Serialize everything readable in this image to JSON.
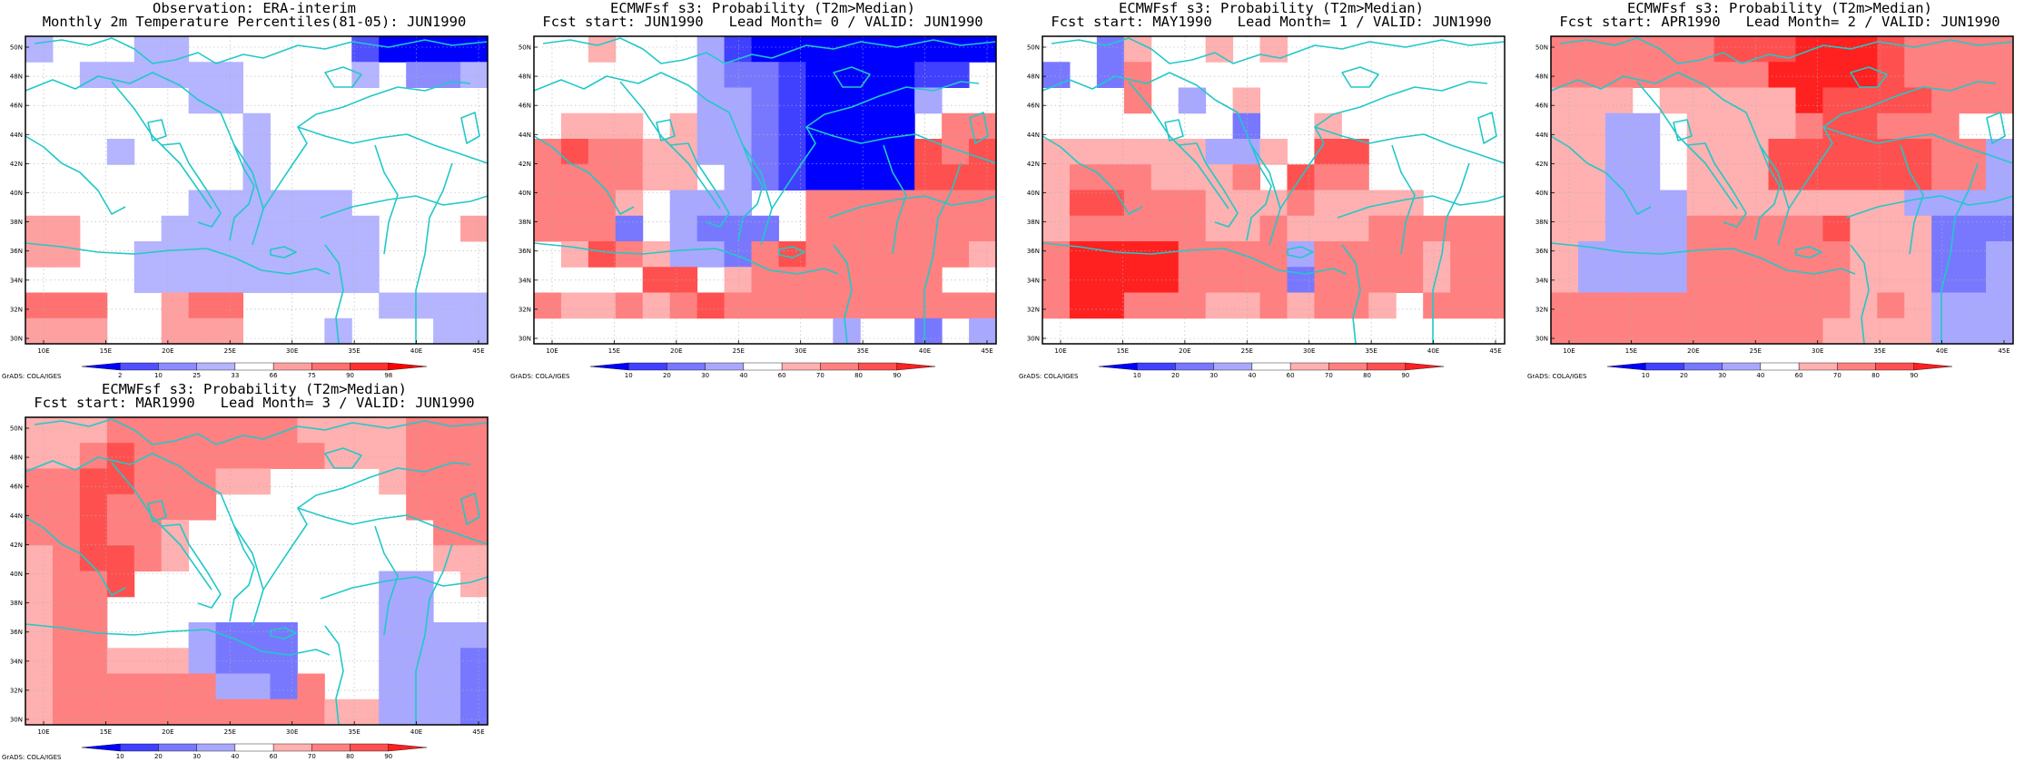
{
  "grid": {
    "lon_ticks": [
      "10E",
      "15E",
      "20E",
      "25E",
      "30E",
      "35E",
      "40E",
      "45E"
    ],
    "lat_ticks": [
      "50N",
      "48N",
      "46N",
      "44N",
      "42N",
      "40N",
      "38N",
      "36N",
      "34N",
      "32N",
      "30N"
    ],
    "coast_color": "#22c8c8"
  },
  "panels": [
    {
      "id": "obs",
      "title_line1": "Observation: ERA-interim",
      "title_line2": "Monthly 2m Temperature Percentiles(81-05): JUN1990",
      "colorbar_labels": [
        "2",
        "10",
        "25",
        "33",
        "66",
        "75",
        "90",
        "98"
      ],
      "credit": "GrADS: COLA/IGES",
      "palette": [
        "#0000ff",
        "#5050ff",
        "#8c8cff",
        "#b4b4ff",
        "#ffffff",
        "#ffa0a0",
        "#ff7070",
        "#ff3030",
        "#ff0000"
      ],
      "cells": [
        "34443344444410000",
        "44333333444434223",
        "44444433444444444",
        "44444444344444444",
        "44434444344444444",
        "44444444344444444",
        "44444433333344444",
        "55444333333334445",
        "55443333333334444",
        "44443333333334444",
        "66644566444443333",
        "55544555444344433"
      ]
    },
    {
      "id": "lead0",
      "title_line1": "ECMWFsf s3: Probability (T2m>Median)",
      "title_line2": "Fcst start: JUN1990   Lead Month= 0 / VALID: JUN1990",
      "colorbar_labels": [
        "10",
        "20",
        "30",
        "40",
        "60",
        "70",
        "80",
        "90"
      ],
      "credit": "GrADS: COLA/IGES",
      "palette": [
        "#0000ff",
        "#4040ff",
        "#7878ff",
        "#a8a8ff",
        "#ffffff",
        "#ffb0b0",
        "#ff8080",
        "#ff5050",
        "#ff2020"
      ],
      "cells": [
        "44544431000000000",
        "44444432210000114",
        "44444433210000344",
        "45554533210000466",
        "67665533210000767",
        "66665543210000777",
        "66654333446666666",
        "66624322246666666",
        "45765332676666665",
        "44447745666666644",
        "65565676666666666",
        "44444444444344243"
      ]
    },
    {
      "id": "lead1",
      "title_line1": "ECMWFsf s3: Probability (T2m>Median)",
      "title_line2": "Fcst start: MAY1990   Lead Month= 1 / VALID: JUN1990",
      "colorbar_labels": [
        "10",
        "20",
        "30",
        "40",
        "60",
        "70",
        "80",
        "90"
      ],
      "credit": "GrADS: COLA/IGES",
      "palette": [
        "#0000ff",
        "#4040ff",
        "#7878ff",
        "#a8a8ff",
        "#ffffff",
        "#ffb0b0",
        "#ff8080",
        "#ff5050",
        "#ff2020"
      ],
      "cells": [
        "44254454544444444",
        "24264444444444444",
        "44464345444444444",
        "44444442445444444",
        "55555533547744444",
        "56665556476644444",
        "57766655565555444",
        "56666655655566666",
        "68888666636666566",
        "68888666626666566",
        "68866655656654666",
        "44444444444444444"
      ]
    },
    {
      "id": "lead2",
      "title_line1": "ECMWFsf s3: Probability (T2m>Median)",
      "title_line2": "Fcst start: APR1990   Lead Month= 2 / VALID: JUN1990",
      "colorbar_labels": [
        "10",
        "20",
        "30",
        "40",
        "60",
        "70",
        "80",
        "90"
      ],
      "credit": "GrADS: COLA/IGES",
      "palette": [
        "#0000ff",
        "#4040ff",
        "#7878ff",
        "#a8a8ff",
        "#ffffff",
        "#ffb0b0",
        "#ff8080",
        "#ff5050",
        "#ff2020"
      ],
      "cells": [
        "66666677788876666",
        "66666666888876666",
        "55545555587777666",
        "55334555567766644",
        "55334555777777663",
        "55334555777777663",
        "55333555555553333",
        "55333666667555222",
        "53333666666555223",
        "53333666666555223",
        "66666666666565333",
        "66666666665555333"
      ]
    },
    {
      "id": "lead3",
      "title_line1": "ECMWFsf s3: Probability (T2m>Median)",
      "title_line2": "Fcst start: MAR1990   Lead Month= 3 / VALID: JUN1990",
      "colorbar_labels": [
        "10",
        "20",
        "30",
        "40",
        "60",
        "70",
        "80",
        "90"
      ],
      "credit": "GrADS: COLA/IGES",
      "palette": [
        "#0000ff",
        "#4040ff",
        "#7878ff",
        "#a8a8ff",
        "#ffffff",
        "#ffb0b0",
        "#ff8080",
        "#ff5050",
        "#ff2020"
      ],
      "cells": [
        "55566666665555666",
        "55676666666555666",
        "66776665544445666",
        "66766664444444666",
        "66766544444444466",
        "56776544444444455",
        "56674444444443345",
        "56644444444443344",
        "56644432224443333",
        "56655532224443332",
        "56666663326443332",
        "56666666666553332"
      ]
    }
  ]
}
